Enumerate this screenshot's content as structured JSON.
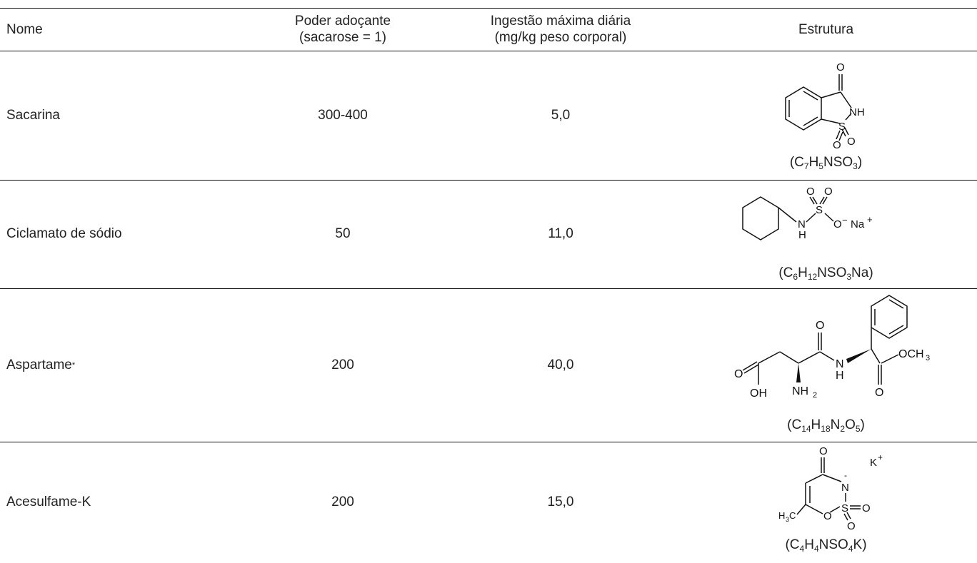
{
  "header": {
    "name": "Nome",
    "power_l1": "Poder adoçante",
    "power_l2": "(sacarose = 1)",
    "intake_l1": "Ingestão máxima diária",
    "intake_l2": "(mg/kg peso corporal)",
    "structure": "Estrutura"
  },
  "rows": [
    {
      "name": "Sacarina",
      "power": "300-400",
      "intake": "5,0",
      "formula": [
        "(C",
        "7",
        "H",
        "5",
        "NSO",
        "3",
        ")"
      ],
      "atoms": [
        "O",
        "NH",
        "S",
        "O",
        "O"
      ]
    },
    {
      "name": "Ciclamato de sódio",
      "power": "50",
      "intake": "11,0",
      "formula": [
        "(C",
        "6",
        "H",
        "12",
        "NSO",
        "3",
        "Na)"
      ],
      "atoms": [
        "O",
        "O",
        "S",
        "N",
        "H",
        "O",
        "−",
        "Na",
        "+"
      ]
    },
    {
      "name": "Aspartame",
      "name_mark": "*",
      "power": "200",
      "intake": "40,0",
      "formula": [
        "(C",
        "14",
        "H",
        "18",
        "N",
        "2",
        "O",
        "5",
        ")"
      ],
      "atoms": [
        "O",
        "OH",
        "NH",
        "2",
        "O",
        "N",
        "H",
        "O",
        "OCH",
        "3"
      ]
    },
    {
      "name": "Acesulfame-K",
      "power": "200",
      "intake": "15,0",
      "formula": [
        "(C",
        "4",
        "H",
        "4",
        "NSO",
        "4",
        "K)"
      ],
      "atoms": [
        "O",
        "N",
        "-",
        "K",
        "+",
        "S",
        "O",
        "O",
        "O",
        "H",
        "3",
        "C"
      ]
    }
  ]
}
